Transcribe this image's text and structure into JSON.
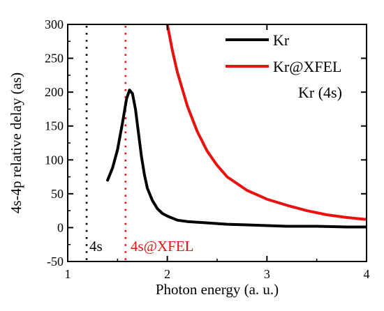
{
  "chart_data": {
    "type": "line",
    "title": "",
    "xlabel": "Photon energy (a. u.)",
    "ylabel": "4s-4p relative delay (as)",
    "xlim": [
      1,
      4
    ],
    "ylim": [
      -50,
      300
    ],
    "xticks": [
      1,
      2,
      3,
      4
    ],
    "yticks": [
      -50,
      0,
      50,
      100,
      150,
      200,
      250,
      300
    ],
    "grid": false,
    "legend_position": "top-right",
    "series": [
      {
        "name": "Kr",
        "color": "#000000",
        "x": [
          1.4,
          1.45,
          1.5,
          1.55,
          1.59,
          1.62,
          1.65,
          1.68,
          1.71,
          1.74,
          1.77,
          1.8,
          1.85,
          1.9,
          1.95,
          2.0,
          2.1,
          2.2,
          2.4,
          2.6,
          2.8,
          3.0,
          3.2,
          3.5,
          3.8,
          4.0
        ],
        "y": [
          70,
          88,
          115,
          155,
          190,
          203,
          198,
          175,
          140,
          105,
          78,
          58,
          40,
          28,
          21,
          17,
          11,
          9,
          7,
          5,
          4,
          3,
          2,
          2,
          1,
          1
        ]
      },
      {
        "name": "Kr@XFEL",
        "color": "#e8120f",
        "x": [
          2.0,
          2.05,
          2.1,
          2.2,
          2.3,
          2.4,
          2.5,
          2.6,
          2.8,
          3.0,
          3.2,
          3.4,
          3.6,
          3.8,
          4.0
        ],
        "y": [
          300,
          262,
          230,
          180,
          142,
          113,
          92,
          75,
          55,
          42,
          33,
          25,
          19,
          15,
          12
        ]
      }
    ],
    "vlines": [
      {
        "x": 1.19,
        "color": "#000000",
        "label": "4s"
      },
      {
        "x": 1.58,
        "color": "#e8120f",
        "label": "4s@XFEL"
      }
    ],
    "annotations": [
      {
        "text": "Kr (4s)",
        "color": "#000000"
      }
    ]
  }
}
